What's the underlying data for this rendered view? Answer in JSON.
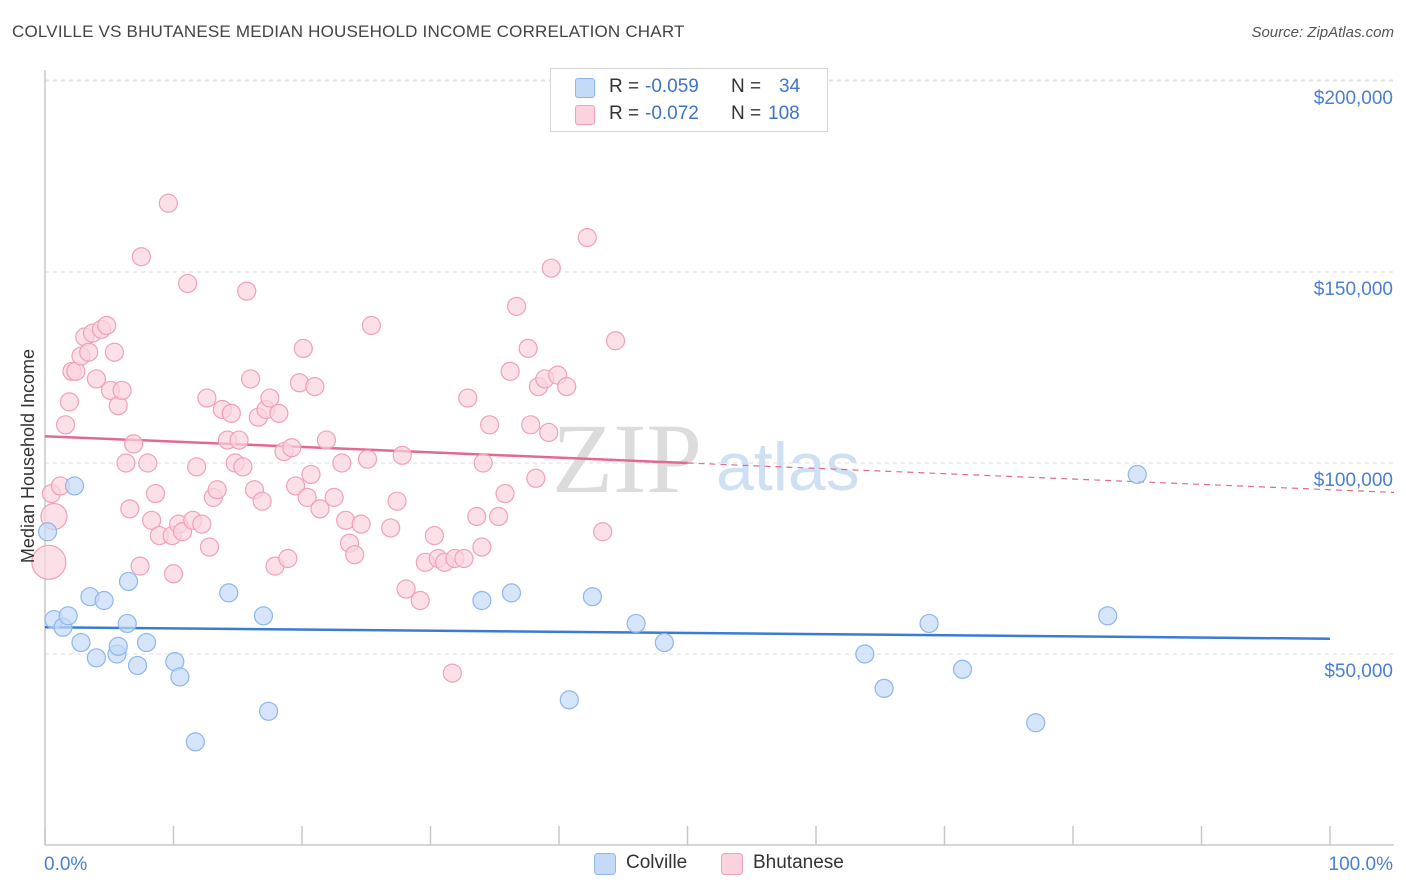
{
  "header": {
    "title": "COLVILLE VS BHUTANESE MEDIAN HOUSEHOLD INCOME CORRELATION CHART",
    "source": "Source: ZipAtlas.com"
  },
  "watermark": {
    "zip": "ZIP",
    "atlas": "atlas"
  },
  "stats": [
    {
      "r_label": "R =",
      "r_value": "-0.059",
      "n_label": "N =",
      "n_value": "34",
      "color": "#8db6ee",
      "fill": "#c5daf7"
    },
    {
      "r_label": "R =",
      "r_value": "-0.072",
      "n_label": "N =",
      "n_value": "108",
      "color": "#f0a0b9",
      "fill": "#fbd3de"
    }
  ],
  "legend": [
    {
      "label": "Colville",
      "color": "#8db6ee",
      "fill": "#c5daf7"
    },
    {
      "label": "Bhutanese",
      "color": "#f0a0b9",
      "fill": "#fbd3de"
    }
  ],
  "chart_data": {
    "type": "scatter",
    "title": "COLVILLE VS BHUTANESE MEDIAN HOUSEHOLD INCOME CORRELATION CHART",
    "xlabel": "",
    "ylabel": "Median Household Income",
    "x_tick_labels": [
      "0.0%",
      "100.0%"
    ],
    "y_tick_labels": [
      "$50,000",
      "$100,000",
      "$150,000",
      "$200,000"
    ],
    "y_ticks": [
      50000,
      100000,
      150000,
      200000
    ],
    "xlim": [
      0,
      100
    ],
    "ylim": [
      0,
      205000
    ],
    "grid": true,
    "legend_position": "bottom-center",
    "series": [
      {
        "name": "Colville",
        "color": "#8db6ee",
        "fill": "#c5daf7",
        "line_color": "#3a7bd5",
        "trend": {
          "x": [
            0,
            100
          ],
          "y": [
            57000,
            54000
          ]
        },
        "points": [
          [
            0.2,
            82000
          ],
          [
            0.7,
            59000
          ],
          [
            1.4,
            57000
          ],
          [
            1.8,
            60000
          ],
          [
            2.3,
            94000
          ],
          [
            2.8,
            53000
          ],
          [
            3.5,
            65000
          ],
          [
            4.0,
            49000
          ],
          [
            4.6,
            64000
          ],
          [
            5.6,
            50000
          ],
          [
            5.7,
            52000
          ],
          [
            6.4,
            58000
          ],
          [
            6.5,
            69000
          ],
          [
            7.2,
            47000
          ],
          [
            7.9,
            53000
          ],
          [
            10.1,
            48000
          ],
          [
            10.5,
            44000
          ],
          [
            11.7,
            27000
          ],
          [
            14.3,
            66000
          ],
          [
            17.0,
            60000
          ],
          [
            17.4,
            35000
          ],
          [
            34.0,
            64000
          ],
          [
            36.3,
            66000
          ],
          [
            40.8,
            38000
          ],
          [
            42.6,
            65000
          ],
          [
            46.0,
            58000
          ],
          [
            48.2,
            53000
          ],
          [
            63.8,
            50000
          ],
          [
            65.3,
            41000
          ],
          [
            68.8,
            58000
          ],
          [
            71.4,
            46000
          ],
          [
            77.1,
            32000
          ],
          [
            82.7,
            60000
          ],
          [
            85.0,
            97000
          ]
        ]
      },
      {
        "name": "Bhutanese",
        "color": "#f0a0b9",
        "fill": "#fbd3de",
        "line_color": "#e5698f",
        "trend": {
          "x": [
            0,
            100
          ],
          "y": [
            107000,
            93000
          ]
        },
        "trend_solid_until": 50,
        "points": [
          [
            0.5,
            92000
          ],
          [
            0.7,
            86000
          ],
          [
            1.2,
            94000
          ],
          [
            1.6,
            110000
          ],
          [
            1.9,
            116000
          ],
          [
            2.1,
            124000
          ],
          [
            2.4,
            124000
          ],
          [
            2.8,
            128000
          ],
          [
            3.1,
            133000
          ],
          [
            3.4,
            129000
          ],
          [
            3.7,
            134000
          ],
          [
            4.0,
            122000
          ],
          [
            4.4,
            135000
          ],
          [
            4.8,
            136000
          ],
          [
            5.1,
            119000
          ],
          [
            5.4,
            129000
          ],
          [
            5.7,
            115000
          ],
          [
            6.0,
            119000
          ],
          [
            6.3,
            100000
          ],
          [
            6.6,
            88000
          ],
          [
            6.9,
            105000
          ],
          [
            7.4,
            73000
          ],
          [
            7.5,
            154000
          ],
          [
            8.0,
            100000
          ],
          [
            8.3,
            85000
          ],
          [
            8.6,
            92000
          ],
          [
            8.9,
            81000
          ],
          [
            9.6,
            168000
          ],
          [
            9.9,
            81000
          ],
          [
            10.0,
            71000
          ],
          [
            10.4,
            84000
          ],
          [
            10.7,
            82000
          ],
          [
            11.1,
            147000
          ],
          [
            11.5,
            85000
          ],
          [
            11.8,
            99000
          ],
          [
            12.2,
            84000
          ],
          [
            12.6,
            117000
          ],
          [
            12.8,
            78000
          ],
          [
            13.1,
            91000
          ],
          [
            13.4,
            93000
          ],
          [
            13.8,
            114000
          ],
          [
            14.2,
            106000
          ],
          [
            14.5,
            113000
          ],
          [
            14.8,
            100000
          ],
          [
            15.1,
            106000
          ],
          [
            15.4,
            99000
          ],
          [
            15.7,
            145000
          ],
          [
            16.0,
            122000
          ],
          [
            16.3,
            93000
          ],
          [
            16.6,
            112000
          ],
          [
            16.9,
            90000
          ],
          [
            17.2,
            114000
          ],
          [
            17.5,
            117000
          ],
          [
            17.9,
            73000
          ],
          [
            18.2,
            113000
          ],
          [
            18.6,
            103000
          ],
          [
            18.9,
            75000
          ],
          [
            19.2,
            104000
          ],
          [
            19.5,
            94000
          ],
          [
            19.8,
            121000
          ],
          [
            20.1,
            130000
          ],
          [
            20.4,
            91000
          ],
          [
            20.7,
            97000
          ],
          [
            21.0,
            120000
          ],
          [
            21.4,
            88000
          ],
          [
            21.9,
            106000
          ],
          [
            22.5,
            91000
          ],
          [
            23.1,
            100000
          ],
          [
            23.4,
            85000
          ],
          [
            23.7,
            79000
          ],
          [
            24.1,
            76000
          ],
          [
            24.6,
            84000
          ],
          [
            25.1,
            101000
          ],
          [
            25.4,
            136000
          ],
          [
            26.9,
            83000
          ],
          [
            27.4,
            90000
          ],
          [
            27.8,
            102000
          ],
          [
            28.1,
            67000
          ],
          [
            29.2,
            64000
          ],
          [
            29.6,
            74000
          ],
          [
            30.3,
            81000
          ],
          [
            30.6,
            75000
          ],
          [
            31.1,
            74000
          ],
          [
            31.7,
            45000
          ],
          [
            31.9,
            75000
          ],
          [
            32.6,
            75000
          ],
          [
            32.9,
            117000
          ],
          [
            33.6,
            86000
          ],
          [
            34.0,
            78000
          ],
          [
            34.1,
            100000
          ],
          [
            34.6,
            110000
          ],
          [
            35.3,
            86000
          ],
          [
            35.8,
            92000
          ],
          [
            36.2,
            124000
          ],
          [
            36.7,
            141000
          ],
          [
            37.6,
            130000
          ],
          [
            37.8,
            110000
          ],
          [
            38.2,
            96000
          ],
          [
            38.4,
            120000
          ],
          [
            38.9,
            122000
          ],
          [
            39.2,
            108000
          ],
          [
            39.4,
            151000
          ],
          [
            39.9,
            123000
          ],
          [
            40.6,
            120000
          ],
          [
            42.2,
            159000
          ],
          [
            43.4,
            82000
          ],
          [
            44.4,
            132000
          ],
          [
            0.3,
            74000
          ]
        ]
      }
    ]
  }
}
